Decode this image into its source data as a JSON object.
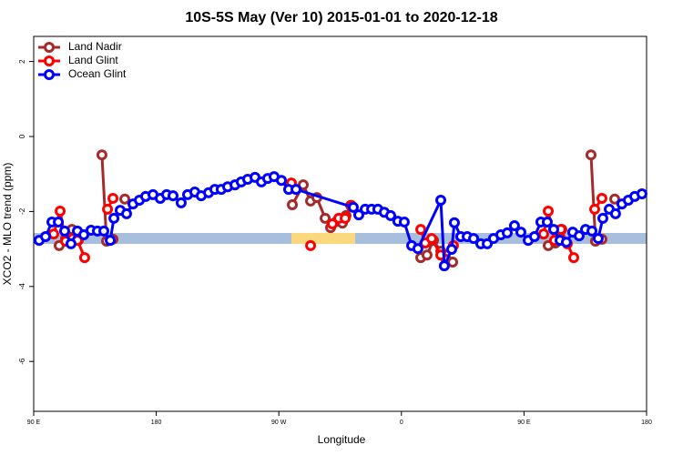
{
  "chart_data": {
    "type": "line",
    "title": "10S-5S May (Ver 10)   2015-01-01 to 2020-12-18",
    "x_label": "Longitude",
    "y_label": "XCO2 - MLO trend (ppm)",
    "xlim": [
      90,
      540
    ],
    "ylim": [
      -7.33,
      2.67
    ],
    "xticks": [
      {
        "value": 90,
        "label": "90 E"
      },
      180,
      {
        "value": 270,
        "label": "90 W"
      },
      {
        "value": 360,
        "label": "0"
      },
      {
        "value": 450,
        "label": "90 E"
      },
      {
        "value": 540,
        "label": "180"
      }
    ],
    "yticks": [
      2,
      0,
      -2,
      -4,
      -6
    ],
    "legend": "top-left",
    "series": [
      {
        "name": "Land Nadir",
        "color": "#a52a2a",
        "x": [
          108.7,
          113.4,
          118.1,
          122.8,
          null,
          140.1,
          143.5,
          148.2,
          null,
          156.9,
          null,
          279.9,
          287.9,
          293.3,
          297.9,
          304.0,
          308.0,
          312.6,
          316.7,
          319.3,
          322.7,
          null,
          374.2,
          378.8,
          383.5,
          388.9,
          392.9,
          397.6,
          null,
          467.8,
          473.1,
          477.8,
          null,
          499.2,
          502.5,
          507.2,
          null,
          516.6
        ],
        "values": [
          -2.91,
          -2.72,
          -2.48,
          -2.77,
          null,
          -0.49,
          -2.79,
          -2.74,
          null,
          -1.67,
          null,
          -1.82,
          -1.29,
          -1.72,
          -1.63,
          -2.18,
          -2.43,
          -2.26,
          -2.31,
          -2.11,
          -1.84,
          null,
          -3.23,
          -3.16,
          -2.77,
          -3.06,
          -3.28,
          -3.35,
          null,
          -2.91,
          -2.84,
          -2.48,
          null,
          -0.49,
          -2.79,
          -2.74,
          null,
          -1.67
        ]
      },
      {
        "name": "Land Glint",
        "color": "#ff0000",
        "x": [
          104.7,
          109.4,
          113.4,
          118.7,
          122.1,
          127.4,
          null,
          144.2,
          148.2,
          null,
          279.2,
          null,
          293.3,
          null,
          309.3,
          314.0,
          318.7,
          323.3,
          null,
          374.2,
          377.5,
          382.2,
          388.9,
          398.2,
          null,
          464.4,
          467.8,
          472.4,
          477.1,
          481.8,
          486.5,
          null,
          501.9,
          507.2
        ],
        "values": [
          -2.6,
          -1.99,
          -2.79,
          -2.72,
          -2.77,
          -3.23,
          null,
          -1.94,
          -1.65,
          null,
          -1.24,
          null,
          -2.91,
          null,
          -2.33,
          -2.18,
          -2.18,
          -1.84,
          null,
          -2.48,
          -2.84,
          -2.72,
          -3.16,
          -2.91,
          null,
          -2.6,
          -1.99,
          -2.77,
          -2.48,
          -2.86,
          -3.23,
          null,
          -1.94,
          -1.65
        ]
      },
      {
        "name": "Ocean Glint",
        "color": "#0000ff",
        "x": [
          94.0,
          98.7,
          103.4,
          108.1,
          112.7,
          117.4,
          122.1,
          126.8,
          132.1,
          136.8,
          141.5,
          146.2,
          148.9,
          153.5,
          158.2,
          162.9,
          167.6,
          172.2,
          177.6,
          182.9,
          187.6,
          192.3,
          198.3,
          203.0,
          208.3,
          213.0,
          218.4,
          223.0,
          227.7,
          232.4,
          237.8,
          242.4,
          247.1,
          252.5,
          257.2,
          261.8,
          266.5,
          271.9,
          277.2,
          282.6,
          324.7,
          328.7,
          333.4,
          338.1,
          342.7,
          347.4,
          352.1,
          357.4,
          362.1,
          367.5,
          372.1,
          388.9,
          391.5,
          396.9,
          398.9,
          403.6,
          408.3,
          413.0,
          418.3,
          423.0,
          427.6,
          433.0,
          437.7,
          443.0,
          447.7,
          453.1,
          457.7,
          462.4,
          467.1,
          471.8,
          476.5,
          481.1,
          485.8,
          490.5,
          495.2,
          499.9,
          504.5,
          507.9,
          512.6,
          517.2,
          521.9,
          526.6,
          531.3,
          536.6
        ],
        "values": [
          -2.77,
          -2.67,
          -2.28,
          -2.28,
          -2.52,
          -2.86,
          -2.52,
          -2.62,
          -2.5,
          -2.52,
          -2.52,
          -2.77,
          -2.18,
          -1.97,
          -2.06,
          -1.8,
          -1.7,
          -1.6,
          -1.55,
          -1.65,
          -1.55,
          -1.58,
          -1.77,
          -1.55,
          -1.48,
          -1.58,
          -1.5,
          -1.41,
          -1.41,
          -1.34,
          -1.29,
          -1.21,
          -1.14,
          -1.09,
          -1.21,
          -1.12,
          -1.07,
          -1.17,
          -1.41,
          -1.41,
          -1.89,
          -2.09,
          -1.94,
          -1.94,
          -1.94,
          -2.02,
          -2.11,
          -2.26,
          -2.28,
          -2.91,
          -2.99,
          -1.7,
          -3.45,
          -3.01,
          -2.3,
          -2.67,
          -2.67,
          -2.72,
          -2.86,
          -2.86,
          -2.72,
          -2.62,
          -2.57,
          -2.38,
          -2.55,
          -2.77,
          -2.67,
          -2.28,
          -2.28,
          -2.48,
          -2.77,
          -2.82,
          -2.55,
          -2.65,
          -2.48,
          -2.52,
          -2.72,
          -2.18,
          -1.94,
          -2.06,
          -1.8,
          -1.7,
          -1.6,
          -1.53
        ]
      }
    ]
  }
}
